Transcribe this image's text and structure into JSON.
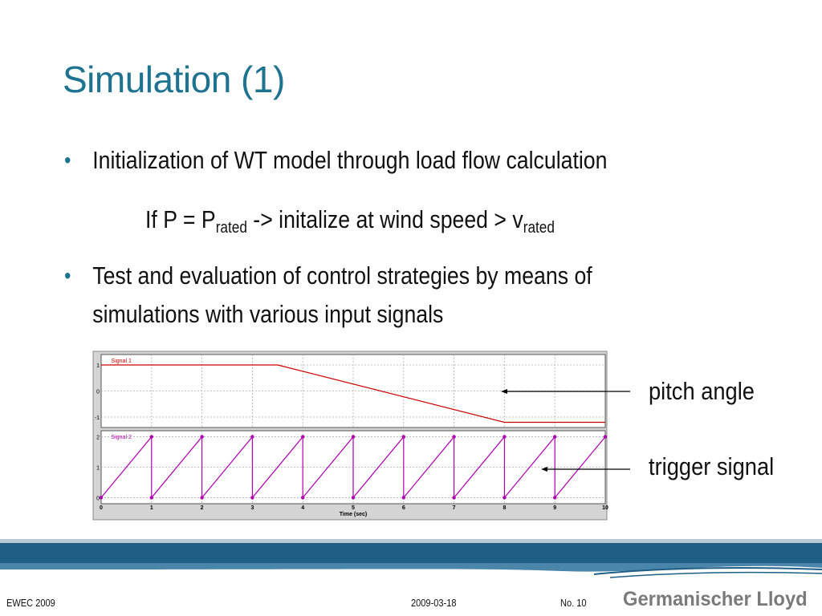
{
  "title": "Simulation (1)",
  "bullets": [
    {
      "text": "Initialization of WT model through load flow calculation"
    },
    {
      "line1": "Test and evaluation of control strategies by means of",
      "line2": "simulations with various input signals"
    }
  ],
  "subline": {
    "prefix": "If P = P",
    "sub1": "rated",
    "middle": " -> initalize at wind speed > v",
    "sub2": "rated"
  },
  "annotations": {
    "pitch": "pitch angle",
    "trigger": "trigger signal"
  },
  "footer": {
    "left": "EWEC 2009",
    "date": "2009-03-18",
    "page": "No. 10",
    "logo": "Germanischer Lloyd"
  },
  "colors": {
    "title": "#1e7391",
    "signal1": "#cc0000",
    "signal2": "#b000b0",
    "footer_band": "#1f5f86"
  },
  "chart_data": [
    {
      "type": "line",
      "series": [
        {
          "name": "Signal 1",
          "x": [
            0,
            3.5,
            8,
            10
          ],
          "y": [
            1,
            1,
            -1.2,
            -1.2
          ]
        }
      ],
      "yticks": [
        "1",
        "0",
        "-1"
      ],
      "xlim": [
        0,
        10
      ],
      "ylim": [
        -1.4,
        1.4
      ],
      "grid": true
    },
    {
      "type": "line",
      "series": [
        {
          "name": "Signal 2",
          "x": [
            0,
            1,
            1,
            2,
            2,
            3,
            3,
            4,
            4,
            5,
            5,
            6,
            6,
            7,
            7,
            8,
            8,
            9,
            9,
            10
          ],
          "y": [
            0,
            2,
            0,
            2,
            0,
            2,
            0,
            2,
            0,
            2,
            0,
            2,
            0,
            2,
            0,
            2,
            0,
            2,
            0,
            2
          ]
        }
      ],
      "yticks": [
        "2",
        "1",
        "0"
      ],
      "xticks": [
        "0",
        "1",
        "2",
        "3",
        "4",
        "5",
        "6",
        "7",
        "8",
        "9",
        "10"
      ],
      "xlabel": "Time (sec)",
      "xlim": [
        0,
        10
      ],
      "ylim": [
        -0.2,
        2.2
      ],
      "grid": true
    }
  ]
}
